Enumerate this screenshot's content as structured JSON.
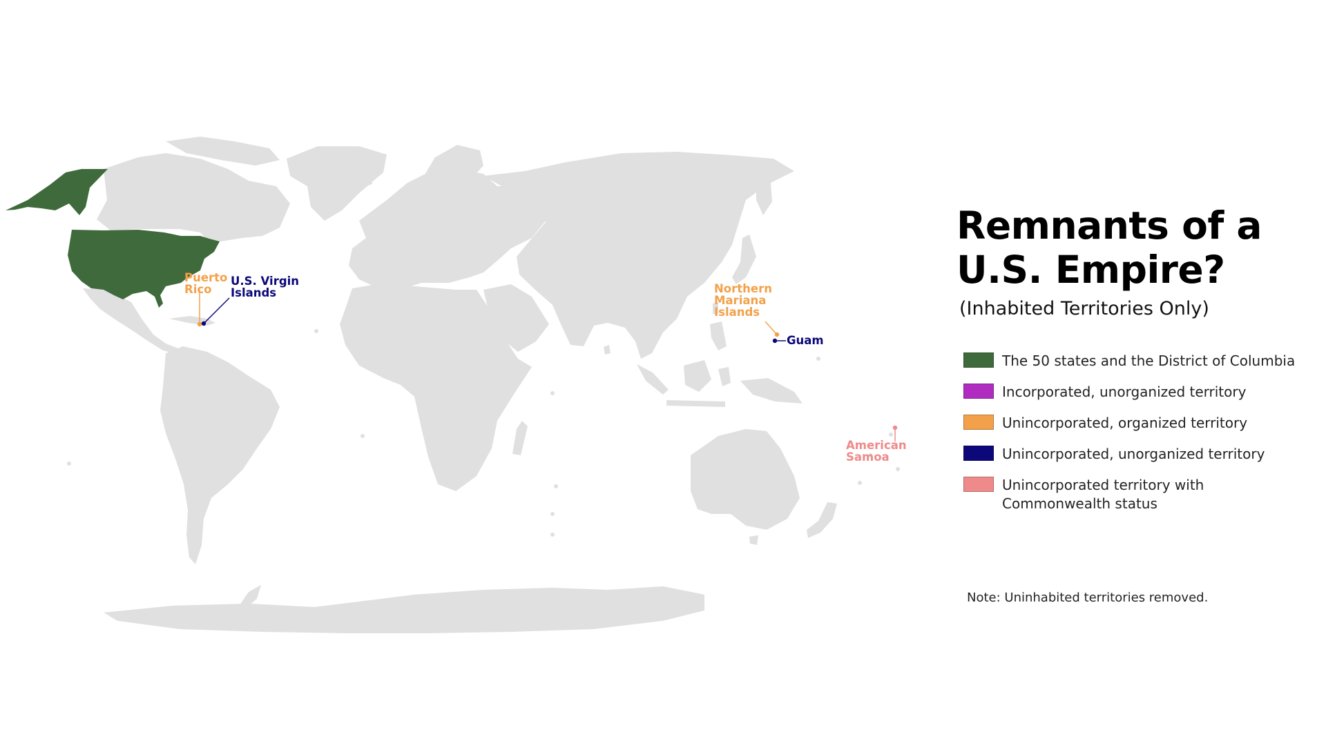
{
  "title_lines": [
    "Remnants of a",
    "U.S. Empire?"
  ],
  "subtitle": "(Inhabited Territories Only)",
  "legend": [
    {
      "label": "The 50 states and the District of Columbia",
      "color": "#3f6a3b"
    },
    {
      "label": "Incorporated, unorganized territory",
      "color": "#b02bc0"
    },
    {
      "label": "Unincorporated, organized territory",
      "color": "#f2a14a"
    },
    {
      "label": "Unincorporated, unorganized territory",
      "color": "#0c0879"
    },
    {
      "label": "Unincorporated territory with Commonwealth status",
      "color": "#ef8a8a"
    }
  ],
  "map_labels": {
    "puerto_rico": [
      "Puerto",
      "Rico"
    ],
    "virgin_islands": [
      "U.S. Virgin",
      "Islands"
    ],
    "northern_mariana": [
      "Northern",
      "Mariana",
      "Islands"
    ],
    "guam": "Guam",
    "american_samoa": [
      "American",
      "Samoa"
    ]
  },
  "note": "Note: Uninhabited territories removed.",
  "colors": {
    "land": "#e0e0e0",
    "us": "#3f6a3b",
    "organized": "#f2a14a",
    "unorganized": "#0c0879",
    "commonwealth": "#ef8a8a"
  }
}
